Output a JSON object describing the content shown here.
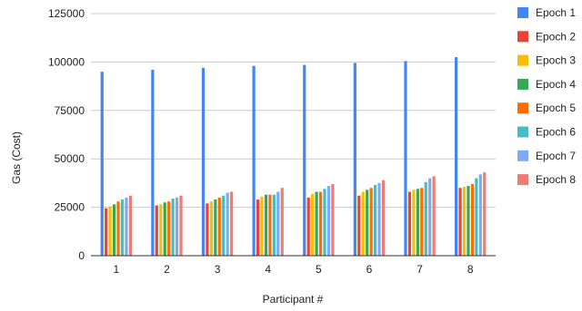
{
  "chart_data": {
    "type": "bar",
    "title": "",
    "xlabel": "Participant #",
    "ylabel": "Gas (Cost)",
    "categories": [
      "1",
      "2",
      "3",
      "4",
      "5",
      "6",
      "7",
      "8"
    ],
    "ylim": [
      0,
      125000
    ],
    "yticks": [
      0,
      25000,
      50000,
      75000,
      100000,
      125000
    ],
    "ytick_labels": [
      "0",
      "25000",
      "50000",
      "75000",
      "100000",
      "125000"
    ],
    "grid": true,
    "legend_position": "right",
    "series": [
      {
        "name": "Epoch 1",
        "color": "#4285F4",
        "values": [
          95000,
          96000,
          97000,
          98000,
          98500,
          99500,
          100500,
          102500
        ]
      },
      {
        "name": "Epoch 2",
        "color": "#EA4335",
        "values": [
          24500,
          26000,
          27000,
          29000,
          30000,
          31000,
          33000,
          35000
        ]
      },
      {
        "name": "Epoch 3",
        "color": "#FBBC04",
        "values": [
          25500,
          26500,
          28000,
          30500,
          32000,
          33000,
          34000,
          35500
        ]
      },
      {
        "name": "Epoch 4",
        "color": "#34A853",
        "values": [
          26500,
          27500,
          29000,
          31500,
          33000,
          34000,
          34500,
          36000
        ]
      },
      {
        "name": "Epoch 5",
        "color": "#FF6D01",
        "values": [
          28000,
          28000,
          30000,
          31500,
          33000,
          35000,
          35000,
          37000
        ]
      },
      {
        "name": "Epoch 6",
        "color": "#46BDC6",
        "values": [
          29000,
          29500,
          31000,
          31500,
          34500,
          36500,
          38000,
          40000
        ]
      },
      {
        "name": "Epoch 7",
        "color": "#7BAAF7",
        "values": [
          30000,
          30000,
          32500,
          33000,
          36000,
          37500,
          40000,
          42000
        ]
      },
      {
        "name": "Epoch 8",
        "color": "#F07B72",
        "values": [
          31000,
          31000,
          33000,
          35000,
          37000,
          39000,
          41000,
          43000
        ]
      }
    ]
  }
}
